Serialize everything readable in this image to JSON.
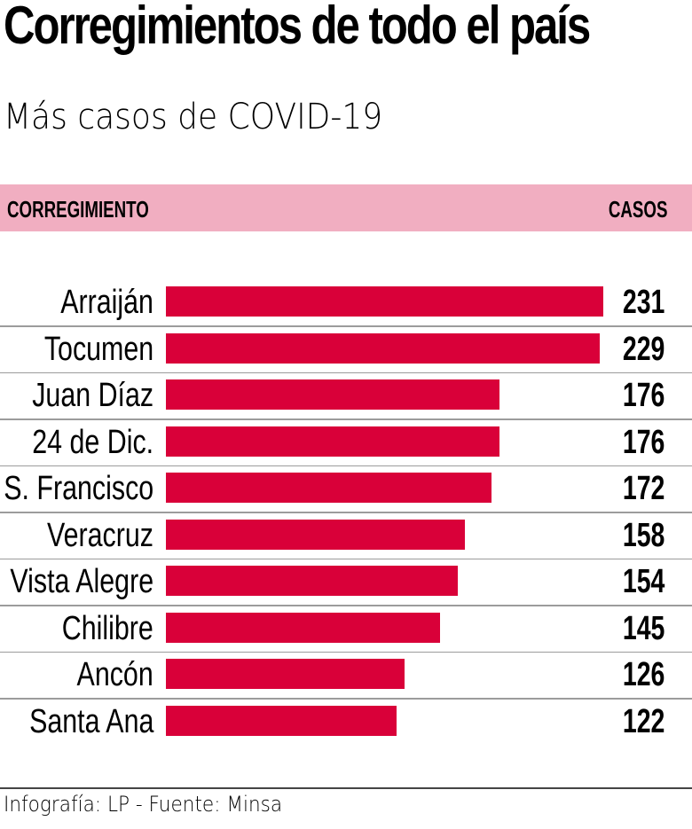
{
  "header": {
    "title": "Corregimientos de todo el país",
    "subtitle": "Más casos de COVID-19"
  },
  "table_header": {
    "left": "CORREGIMIENTO",
    "right": "CASOS",
    "background": "#f1aec1"
  },
  "bar_color": "#d90039",
  "footer": {
    "credit": "Infografía: LP - Fuente: Minsa"
  },
  "chart_data": {
    "type": "bar",
    "orientation": "horizontal",
    "title": "Corregimientos de todo el país",
    "subtitle": "Más casos de COVID-19",
    "xlabel": "CASOS",
    "ylabel": "CORREGIMIENTO",
    "categories": [
      "Arraiján",
      "Tocumen",
      "Juan Díaz",
      "24 de Dic.",
      "S. Francisco",
      "Veracruz",
      "Vista Alegre",
      "Chilibre",
      "Ancón",
      "Santa Ana"
    ],
    "values": [
      231,
      229,
      176,
      176,
      172,
      158,
      154,
      145,
      126,
      122
    ],
    "xlim": [
      0,
      231
    ],
    "grid": false,
    "legend": null,
    "source": "Infografía: LP - Fuente: Minsa"
  }
}
